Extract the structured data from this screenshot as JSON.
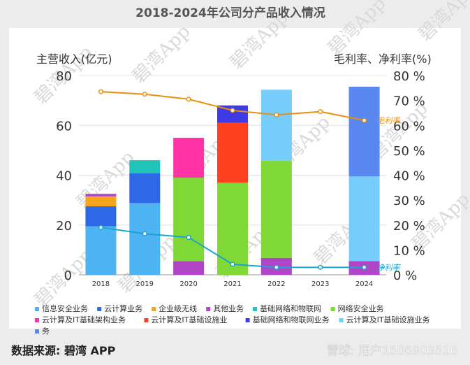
{
  "chart_data": {
    "type": "bar",
    "title": "2018-2024年公司分产品收入情况",
    "ylabel_left": "主营收入(亿元)",
    "ylabel_right": "毛利率、净利率(%)",
    "categories": [
      "2018",
      "2019",
      "2020",
      "2021",
      "2022",
      "2023",
      "2024"
    ],
    "ylim_left": [
      0,
      80
    ],
    "ylim_right": [
      0,
      80
    ],
    "yticks_left": [
      "0",
      "20",
      "40",
      "60",
      "80"
    ],
    "yticks_right": [
      "0 %",
      "10 %",
      "20 %",
      "30 %",
      "40 %",
      "50 %",
      "60 %",
      "70 %",
      "80 %"
    ],
    "grid": true,
    "legend_position": "bottom",
    "stacked_series": [
      {
        "name": "信息安全业务",
        "color": "#4eb3f2",
        "values": [
          19.5,
          28.8,
          0,
          0,
          0,
          0,
          0
        ]
      },
      {
        "name": "云计算业务",
        "color": "#2f68e6",
        "values": [
          8,
          12,
          0,
          0,
          0,
          0,
          0
        ]
      },
      {
        "name": "企业级无线",
        "color": "#f5a51b",
        "values": [
          4,
          0,
          0,
          0,
          0,
          0,
          0
        ]
      },
      {
        "name": "其他业务",
        "color": "#b045c8",
        "values": [
          1,
          0,
          5.5,
          0,
          6.8,
          0,
          5.5
        ]
      },
      {
        "name": "基础网络和物联网",
        "color": "#1fc5b9",
        "values": [
          0,
          5.2,
          0,
          0,
          0,
          0,
          0
        ]
      },
      {
        "name": "网络安全业务",
        "color": "#7fd835",
        "values": [
          0,
          0,
          33.5,
          37,
          39,
          0,
          0
        ]
      },
      {
        "name": "云计算及IT基础架构业务",
        "color": "#ff33a6",
        "values": [
          0,
          0,
          16,
          0,
          0,
          0,
          0
        ]
      },
      {
        "name": "云计算及IT基础设施业",
        "color": "#ff3f1f",
        "values": [
          0,
          0,
          0,
          24,
          0,
          0,
          0
        ]
      },
      {
        "name": "基础网络和物联网业务",
        "color": "#3d3ae6",
        "values": [
          0,
          0,
          0,
          7,
          0,
          0,
          0
        ]
      },
      {
        "name": "云计算及IT基础设施业务",
        "color": "#76cdfc",
        "values": [
          0,
          0,
          0,
          0,
          28.5,
          0,
          34
        ]
      },
      {
        "name": "务",
        "color": "#5a87f0",
        "values": [
          0,
          0,
          0,
          0,
          0,
          0,
          36
        ]
      }
    ],
    "line_series": [
      {
        "name": "毛利率",
        "color": "#e8900c",
        "label_color": "#e8900c",
        "values": [
          73.5,
          72.5,
          70.5,
          66,
          64.2,
          65.5,
          62
        ]
      },
      {
        "name": "净利率",
        "color": "#1aa5d0",
        "label_color": "#1aa5d0",
        "values": [
          19,
          16.5,
          15,
          4.2,
          3,
          3,
          3
        ]
      }
    ]
  },
  "source_note": "数据来源: 碧湾 APP",
  "footer_watermark": "雪球: 用户1566903516",
  "watermark_text": "碧湾App"
}
